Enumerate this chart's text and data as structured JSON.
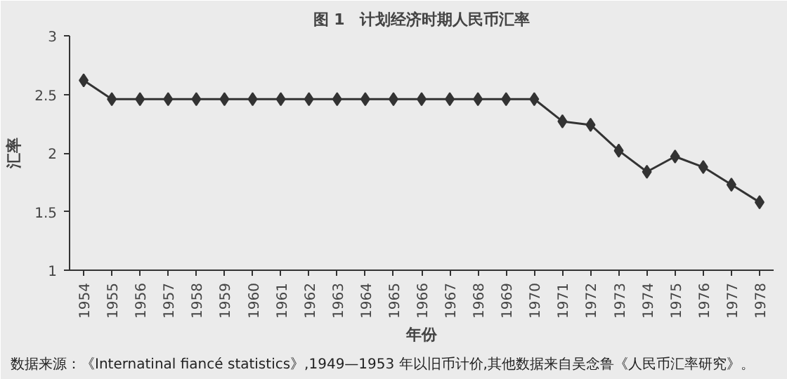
{
  "chart_data": {
    "type": "line",
    "title": "图 1　计划经济时期人民币汇率",
    "xlabel": "年份",
    "ylabel": "汇率",
    "categories": [
      "1954",
      "1955",
      "1956",
      "1957",
      "1958",
      "1959",
      "1960",
      "1961",
      "1962",
      "1963",
      "1964",
      "1965",
      "1966",
      "1967",
      "1968",
      "1969",
      "1970",
      "1971",
      "1972",
      "1973",
      "1974",
      "1975",
      "1976",
      "1977",
      "1978"
    ],
    "series": [
      {
        "color": "#333333",
        "values": [
          2.62,
          2.46,
          2.46,
          2.46,
          2.46,
          2.46,
          2.46,
          2.46,
          2.46,
          2.46,
          2.46,
          2.46,
          2.46,
          2.46,
          2.46,
          2.46,
          2.46,
          2.27,
          2.24,
          2.02,
          1.84,
          1.97,
          1.88,
          1.73,
          1.58
        ]
      }
    ],
    "ylim": [
      1,
      3
    ],
    "yticks": [
      1,
      1.5,
      2,
      2.5,
      3
    ],
    "marker": "diamond",
    "line_style": "solid",
    "grid": false,
    "annotations": [
      "数据来源：《Internatinal fiancé statistics》,1949—1953 年以旧币计价,其他数据来自吴念鲁《人民币汇率研究》。"
    ]
  }
}
